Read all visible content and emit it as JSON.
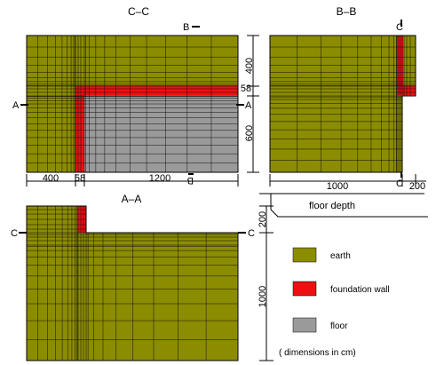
{
  "colors": {
    "earth": "#8c8c00",
    "foundation_wall": "#ee1010",
    "floor": "#9a9a9a",
    "mesh_line": "#101010",
    "dim_line": "#000000"
  },
  "views": {
    "cc": {
      "title": "C–C",
      "dims_right": [
        "400",
        "58",
        "600"
      ],
      "dims_bottom": [
        "400",
        "58",
        "1200"
      ],
      "cut_left": "A",
      "cut_right": "A",
      "cut_top": "B",
      "cut_bottom": "B"
    },
    "bb": {
      "title": "B–B",
      "dims_bottom": [
        "1000",
        "200"
      ],
      "cut_top": "C",
      "cut_bottom": "C"
    },
    "aa": {
      "title": "A–A",
      "dims_right": [
        "200",
        "1000"
      ],
      "cut_left": "C",
      "cut_right": "C"
    }
  },
  "annotations": {
    "floor_depth": "floor depth"
  },
  "legend": {
    "items": [
      {
        "key": "earth",
        "label": "earth"
      },
      {
        "key": "foundation_wall",
        "label": "foundation wall"
      },
      {
        "key": "floor",
        "label": "floor"
      }
    ],
    "note": "( dimensions in cm)"
  }
}
